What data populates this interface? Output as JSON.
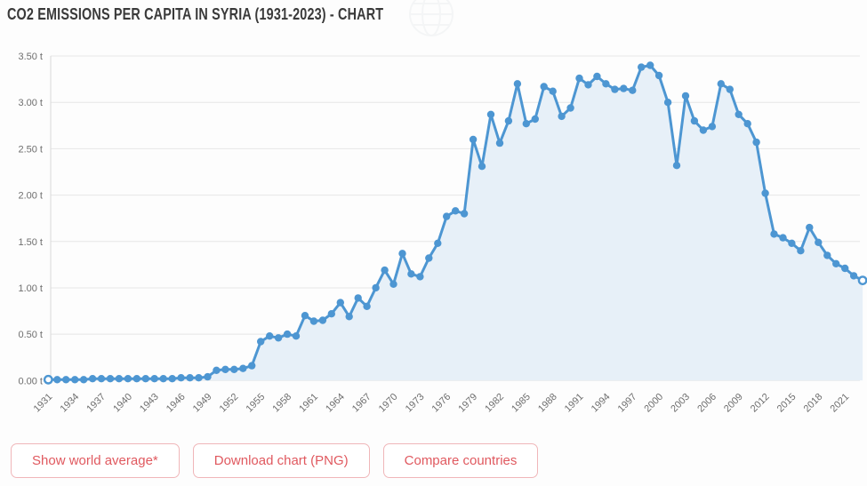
{
  "page": {
    "title": "CO2 EMISSIONS PER CAPITA IN SYRIA (1931-2023) - CHART"
  },
  "buttons": [
    {
      "label": "Show world average*"
    },
    {
      "label": "Download chart (PNG)"
    },
    {
      "label": "Compare countries"
    }
  ],
  "colors": {
    "line": "#4d96d2",
    "marker": "#4d96d2",
    "marker_hollow_fill": "#ffffff",
    "area_fill": "#e7f0f8",
    "grid": "#e6e6e6",
    "axis_line": "#d9d9d9",
    "axis_text": "#6e6e6e",
    "title_text": "#3a3a3a",
    "button_text": "#e0595f",
    "button_border": "#f0b6b9"
  },
  "chart_data": {
    "type": "area",
    "title": "CO2 Emissions per Capita in Syria (1931-2023)",
    "unit": "t",
    "x_start": 1931,
    "x_end": 2023,
    "ylim": [
      0,
      3.5
    ],
    "grid": "horizontal",
    "legend": "none",
    "y_tick_labels": [
      "0.00 t",
      "0.50 t",
      "1.00 t",
      "1.50 t",
      "2.00 t",
      "2.50 t",
      "3.00 t",
      "3.50 t"
    ],
    "x_tick_labels": [
      "1931",
      "1934",
      "1937",
      "1940",
      "1943",
      "1946",
      "1949",
      "1952",
      "1955",
      "1958",
      "1961",
      "1964",
      "1967",
      "1970",
      "1973",
      "1976",
      "1979",
      "1982",
      "1985",
      "1988",
      "1991",
      "1994",
      "1997",
      "2000",
      "2003",
      "2006",
      "2009",
      "2012",
      "2015",
      "2018",
      "2021"
    ],
    "series": [
      {
        "name": "CO2 emissions per capita (tonnes)",
        "values": [
          0.01,
          0.01,
          0.01,
          0.01,
          0.01,
          0.02,
          0.02,
          0.02,
          0.02,
          0.02,
          0.02,
          0.02,
          0.02,
          0.02,
          0.02,
          0.03,
          0.03,
          0.03,
          0.04,
          0.11,
          0.12,
          0.12,
          0.13,
          0.16,
          0.42,
          0.48,
          0.46,
          0.5,
          0.48,
          0.7,
          0.64,
          0.65,
          0.72,
          0.84,
          0.69,
          0.89,
          0.8,
          1.0,
          1.19,
          1.04,
          1.37,
          1.15,
          1.12,
          1.32,
          1.48,
          1.77,
          1.83,
          1.8,
          2.6,
          2.31,
          2.87,
          2.56,
          2.8,
          3.2,
          2.77,
          2.82,
          3.17,
          3.12,
          2.85,
          2.94,
          3.26,
          3.19,
          3.28,
          3.2,
          3.14,
          3.15,
          3.13,
          3.38,
          3.4,
          3.29,
          3.0,
          2.32,
          3.07,
          2.8,
          2.7,
          2.74,
          3.2,
          3.14,
          2.87,
          2.77,
          2.57,
          2.02,
          1.58,
          1.54,
          1.48,
          1.4,
          1.65,
          1.49,
          1.35,
          1.26,
          1.21,
          1.13,
          1.08
        ]
      }
    ]
  }
}
